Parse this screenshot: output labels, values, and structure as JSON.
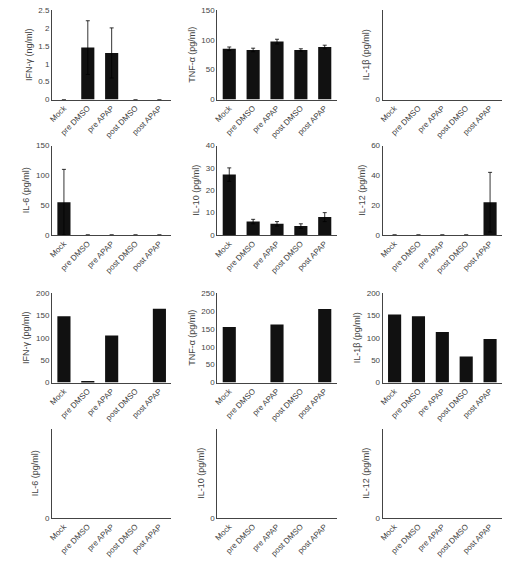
{
  "chart_data": [
    {
      "type": "bar",
      "ylabel": "IFN-γ (ng/ml)",
      "categories": [
        "Mock",
        "pre DMSO",
        "pre APAP",
        "post DMSO",
        "post APAP"
      ],
      "values": [
        0,
        1.45,
        1.3,
        0,
        0
      ],
      "errors": [
        0,
        0.75,
        0.7,
        0,
        0
      ],
      "ylim": [
        0,
        2.5
      ],
      "yticks": [
        0,
        0.5,
        1,
        1.5,
        2,
        2.5
      ],
      "color": "#111111",
      "grid": false
    },
    {
      "type": "bar",
      "ylabel": "TNF-α (pg/ml)",
      "categories": [
        "Mock",
        "pre DMSO",
        "pre APAP",
        "post DMSO",
        "post APAP"
      ],
      "values": [
        85,
        83,
        97,
        83,
        88
      ],
      "errors": [
        3,
        3,
        4,
        2,
        3
      ],
      "ylim": [
        0,
        150
      ],
      "yticks": [
        0,
        50,
        100,
        150
      ],
      "color": "#111111",
      "grid": false
    },
    {
      "type": "bar",
      "ylabel": "IL-1β (pg/ml)",
      "categories": [
        "Mock",
        "pre DMSO",
        "pre APAP",
        "post DMSO",
        "post APAP"
      ],
      "values": [
        0,
        0,
        0,
        0,
        0
      ],
      "ylim": [
        0,
        5
      ],
      "yticks": [
        0
      ],
      "color": "#111111",
      "grid": false
    },
    {
      "type": "bar",
      "ylabel": "IL-6 (pg/ml)",
      "categories": [
        "Mock",
        "pre DMSO",
        "pre APAP",
        "post DMSO",
        "post APAP"
      ],
      "values": [
        55,
        0,
        0,
        0,
        0
      ],
      "errors": [
        55,
        0,
        0,
        0,
        0
      ],
      "ylim": [
        0,
        150
      ],
      "yticks": [
        0,
        50,
        100,
        150
      ],
      "color": "#111111",
      "grid": false
    },
    {
      "type": "bar",
      "ylabel": "IL-10 (pg/ml)",
      "categories": [
        "Mock",
        "pre DMSO",
        "pre APAP",
        "post DMSO",
        "post APAP"
      ],
      "values": [
        27,
        6,
        5,
        4,
        8
      ],
      "errors": [
        3,
        1,
        1,
        1,
        2
      ],
      "ylim": [
        0,
        40
      ],
      "yticks": [
        0,
        10,
        20,
        30,
        40
      ],
      "color": "#111111",
      "grid": false
    },
    {
      "type": "bar",
      "ylabel": "IL-12 (pg/ml)",
      "categories": [
        "Mock",
        "pre DMSO",
        "pre APAP",
        "post DMSO",
        "post APAP"
      ],
      "values": [
        0,
        0,
        0,
        0,
        22
      ],
      "errors": [
        0,
        0,
        0,
        0,
        20
      ],
      "ylim": [
        0,
        60
      ],
      "yticks": [
        0,
        20,
        40,
        60
      ],
      "color": "#111111",
      "grid": false
    },
    {
      "type": "bar",
      "ylabel": "IFN-γ (pg/ml)",
      "categories": [
        "Mock",
        "pre DMSO",
        "pre APAP",
        "post DMSO",
        "post APAP"
      ],
      "values": [
        148,
        2,
        105,
        0,
        165
      ],
      "ylim": [
        0,
        200
      ],
      "yticks": [
        0,
        50,
        100,
        150,
        200
      ],
      "color": "#111111",
      "grid": false
    },
    {
      "type": "bar",
      "ylabel": "TNF-α (pg/ml)",
      "categories": [
        "Mock",
        "pre DMSO",
        "pre APAP",
        "post DMSO",
        "post APAP"
      ],
      "values": [
        155,
        0,
        162,
        0,
        205
      ],
      "ylim": [
        0,
        250
      ],
      "yticks": [
        0,
        50,
        100,
        150,
        200,
        250
      ],
      "color": "#111111",
      "grid": false
    },
    {
      "type": "bar",
      "ylabel": "IL-1β (pg/ml)",
      "categories": [
        "Mock",
        "pre DMSO",
        "pre APAP",
        "post DMSO",
        "post APAP"
      ],
      "values": [
        152,
        148,
        113,
        58,
        97
      ],
      "ylim": [
        0,
        200
      ],
      "yticks": [
        0,
        50,
        100,
        150,
        200
      ],
      "color": "#111111",
      "grid": false
    },
    {
      "type": "bar",
      "ylabel": "IL-6 (pg/ml)",
      "categories": [
        "Mock",
        "pre DMSO",
        "pre APAP",
        "post DMSO",
        "post APAP"
      ],
      "values": [
        0,
        0,
        0,
        0,
        0
      ],
      "ylim": [
        0,
        5
      ],
      "yticks": [
        0
      ],
      "color": "#111111",
      "grid": false
    },
    {
      "type": "bar",
      "ylabel": "IL-10 (pg/ml)",
      "categories": [
        "Mock",
        "pre DMSO",
        "pre APAP",
        "post DMSO",
        "post APAP"
      ],
      "values": [
        0,
        0,
        0,
        0,
        0
      ],
      "ylim": [
        0,
        5
      ],
      "yticks": [
        0
      ],
      "color": "#111111",
      "grid": false
    },
    {
      "type": "bar",
      "ylabel": "IL-12 (pg/ml)",
      "categories": [
        "Mock",
        "pre DMSO",
        "pre APAP",
        "post DMSO",
        "post APAP"
      ],
      "values": [
        0,
        0,
        0,
        0,
        0
      ],
      "ylim": [
        0,
        5
      ],
      "yticks": [
        0
      ],
      "color": "#111111",
      "grid": false
    }
  ]
}
